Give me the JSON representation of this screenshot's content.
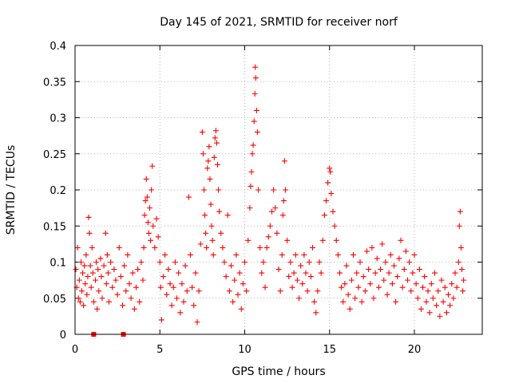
{
  "chart_data": {
    "type": "scatter",
    "title": "Day 145 of 2021, SRMTID for receiver norf",
    "xlabel": "GPS time / hours",
    "ylabel": "SRMTID / TECUs",
    "xlim": [
      0,
      24
    ],
    "ylim": [
      0,
      0.4
    ],
    "x_ticks": [
      {
        "value": 0,
        "label": "0"
      },
      {
        "value": 5,
        "label": "5"
      },
      {
        "value": 10,
        "label": "10"
      },
      {
        "value": 15,
        "label": "15"
      },
      {
        "value": 20,
        "label": "20"
      }
    ],
    "y_ticks": [
      {
        "value": 0,
        "label": "0"
      },
      {
        "value": 0.05,
        "label": "0.05"
      },
      {
        "value": 0.1,
        "label": "0.1"
      },
      {
        "value": 0.15,
        "label": "0.15"
      },
      {
        "value": 0.2,
        "label": "0.2"
      },
      {
        "value": 0.25,
        "label": "0.25"
      },
      {
        "value": 0.3,
        "label": "0.3"
      },
      {
        "value": 0.35,
        "label": "0.35"
      },
      {
        "value": 0.4,
        "label": "0.4"
      }
    ],
    "grid": true,
    "color": "#ff0000",
    "series": [
      {
        "name": "SRMTID",
        "marker": "plus",
        "points": [
          [
            0.05,
            0.09
          ],
          [
            0.1,
            0.065
          ],
          [
            0.15,
            0.12
          ],
          [
            0.2,
            0.05
          ],
          [
            0.25,
            0.075
          ],
          [
            0.3,
            0.045
          ],
          [
            0.35,
            0.1
          ],
          [
            0.4,
            0.06
          ],
          [
            0.45,
            0.085
          ],
          [
            0.5,
            0.04
          ],
          [
            0.55,
            0.095
          ],
          [
            0.6,
            0.07
          ],
          [
            0.65,
            0.11
          ],
          [
            0.7,
            0.055
          ],
          [
            0.75,
            0.08
          ],
          [
            0.8,
            0.162
          ],
          [
            0.85,
            0.14
          ],
          [
            0.9,
            0.095
          ],
          [
            0.95,
            0.065
          ],
          [
            1.0,
            0.12
          ],
          [
            1.05,
            0.085
          ],
          [
            1.1,
            0.045
          ],
          [
            1.2,
            0.075
          ],
          [
            1.25,
            0.1
          ],
          [
            1.3,
            0.035
          ],
          [
            1.35,
            0.09
          ],
          [
            1.4,
            0.06
          ],
          [
            1.5,
            0.105
          ],
          [
            1.55,
            0.08
          ],
          [
            1.6,
            0.05
          ],
          [
            1.7,
            0.095
          ],
          [
            1.8,
            0.14
          ],
          [
            1.85,
            0.07
          ],
          [
            1.9,
            0.11
          ],
          [
            1.95,
            0.085
          ],
          [
            2.0,
            0.045
          ],
          [
            2.1,
            0.1
          ],
          [
            2.2,
            0.065
          ],
          [
            2.3,
            0.09
          ],
          [
            2.4,
            0.075
          ],
          [
            2.5,
            0.055
          ],
          [
            2.6,
            0.12
          ],
          [
            2.7,
            0.08
          ],
          [
            2.8,
            0.04
          ],
          [
            2.9,
            0.095
          ],
          [
            3.0,
            0.06
          ],
          [
            3.1,
            0.11
          ],
          [
            3.2,
            0.07
          ],
          [
            3.3,
            0.05
          ],
          [
            3.4,
            0.085
          ],
          [
            3.5,
            0.035
          ],
          [
            3.6,
            0.065
          ],
          [
            3.7,
            0.09
          ],
          [
            3.8,
            0.045
          ],
          [
            3.9,
            0.1
          ],
          [
            4.0,
            0.075
          ],
          [
            4.05,
            0.12
          ],
          [
            4.1,
            0.165
          ],
          [
            4.15,
            0.185
          ],
          [
            4.2,
            0.215
          ],
          [
            4.25,
            0.19
          ],
          [
            4.3,
            0.155
          ],
          [
            4.35,
            0.14
          ],
          [
            4.4,
            0.175
          ],
          [
            4.45,
            0.13
          ],
          [
            4.5,
            0.2
          ],
          [
            4.55,
            0.233
          ],
          [
            4.6,
            0.15
          ],
          [
            4.7,
            0.12
          ],
          [
            4.8,
            0.16
          ],
          [
            4.9,
            0.135
          ],
          [
            5.0,
            0.1
          ],
          [
            5.05,
            0.065
          ],
          [
            5.1,
            0.02
          ],
          [
            5.2,
            0.08
          ],
          [
            5.3,
            0.11
          ],
          [
            5.4,
            0.055
          ],
          [
            5.5,
            0.09
          ],
          [
            5.6,
            0.07
          ],
          [
            5.7,
            0.04
          ],
          [
            5.8,
            0.065
          ],
          [
            5.9,
            0.1
          ],
          [
            6.0,
            0.05
          ],
          [
            6.1,
            0.085
          ],
          [
            6.2,
            0.03
          ],
          [
            6.3,
            0.07
          ],
          [
            6.4,
            0.045
          ],
          [
            6.5,
            0.095
          ],
          [
            6.6,
            0.06
          ],
          [
            6.7,
            0.19
          ],
          [
            6.8,
            0.11
          ],
          [
            6.9,
            0.065
          ],
          [
            7.0,
            0.04
          ],
          [
            7.1,
            0.085
          ],
          [
            7.2,
            0.017
          ],
          [
            7.3,
            0.06
          ],
          [
            7.4,
            0.125
          ],
          [
            7.5,
            0.28
          ],
          [
            7.55,
            0.25
          ],
          [
            7.6,
            0.2
          ],
          [
            7.65,
            0.165
          ],
          [
            7.7,
            0.14
          ],
          [
            7.75,
            0.12
          ],
          [
            7.8,
            0.23
          ],
          [
            7.85,
            0.24
          ],
          [
            7.9,
            0.26
          ],
          [
            7.95,
            0.215
          ],
          [
            8.0,
            0.18
          ],
          [
            8.05,
            0.15
          ],
          [
            8.1,
            0.13
          ],
          [
            8.15,
            0.11
          ],
          [
            8.2,
            0.245
          ],
          [
            8.25,
            0.272
          ],
          [
            8.3,
            0.282
          ],
          [
            8.35,
            0.265
          ],
          [
            8.4,
            0.235
          ],
          [
            8.45,
            0.2
          ],
          [
            8.5,
            0.17
          ],
          [
            8.6,
            0.14
          ],
          [
            8.7,
            0.12
          ],
          [
            8.8,
            0.1
          ],
          [
            8.9,
            0.08
          ],
          [
            9.0,
            0.165
          ],
          [
            9.1,
            0.06
          ],
          [
            9.2,
            0.095
          ],
          [
            9.3,
            0.045
          ],
          [
            9.4,
            0.075
          ],
          [
            9.5,
            0.11
          ],
          [
            9.6,
            0.055
          ],
          [
            9.7,
            0.085
          ],
          [
            9.8,
            0.035
          ],
          [
            9.9,
            0.07
          ],
          [
            10.0,
            0.1
          ],
          [
            10.1,
            0.06
          ],
          [
            10.2,
            0.13
          ],
          [
            10.3,
            0.175
          ],
          [
            10.35,
            0.205
          ],
          [
            10.4,
            0.225
          ],
          [
            10.45,
            0.25
          ],
          [
            10.5,
            0.262
          ],
          [
            10.55,
            0.295
          ],
          [
            10.6,
            0.333
          ],
          [
            10.62,
            0.37
          ],
          [
            10.65,
            0.355
          ],
          [
            10.7,
            0.31
          ],
          [
            10.75,
            0.28
          ],
          [
            10.8,
            0.2
          ],
          [
            10.9,
            0.12
          ],
          [
            11.0,
            0.085
          ],
          [
            11.1,
            0.1
          ],
          [
            11.2,
            0.065
          ],
          [
            11.3,
            0.12
          ],
          [
            11.4,
            0.135
          ],
          [
            11.5,
            0.15
          ],
          [
            11.6,
            0.17
          ],
          [
            11.7,
            0.2
          ],
          [
            11.8,
            0.175
          ],
          [
            11.9,
            0.14
          ],
          [
            12.0,
            0.09
          ],
          [
            12.1,
            0.06
          ],
          [
            12.2,
            0.11
          ],
          [
            12.25,
            0.165
          ],
          [
            12.3,
            0.185
          ],
          [
            12.35,
            0.24
          ],
          [
            12.4,
            0.2
          ],
          [
            12.5,
            0.13
          ],
          [
            12.6,
            0.08
          ],
          [
            12.7,
            0.1
          ],
          [
            12.8,
            0.065
          ],
          [
            12.9,
            0.085
          ],
          [
            13.0,
            0.11
          ],
          [
            13.1,
            0.075
          ],
          [
            13.2,
            0.05
          ],
          [
            13.3,
            0.095
          ],
          [
            13.4,
            0.07
          ],
          [
            13.5,
            0.11
          ],
          [
            13.6,
            0.085
          ],
          [
            13.7,
            0.06
          ],
          [
            13.8,
            0.1
          ],
          [
            13.9,
            0.08
          ],
          [
            14.0,
            0.12
          ],
          [
            14.1,
            0.045
          ],
          [
            14.2,
            0.03
          ],
          [
            14.3,
            0.06
          ],
          [
            14.4,
            0.1
          ],
          [
            14.5,
            0.085
          ],
          [
            14.6,
            0.13
          ],
          [
            14.7,
            0.165
          ],
          [
            14.8,
            0.185
          ],
          [
            14.9,
            0.21
          ],
          [
            15.0,
            0.23
          ],
          [
            15.05,
            0.225
          ],
          [
            15.1,
            0.195
          ],
          [
            15.2,
            0.17
          ],
          [
            15.3,
            0.15
          ],
          [
            15.4,
            0.13
          ],
          [
            15.5,
            0.11
          ],
          [
            15.6,
            0.085
          ],
          [
            15.7,
            0.065
          ],
          [
            15.8,
            0.045
          ],
          [
            15.9,
            0.07
          ],
          [
            16.0,
            0.095
          ],
          [
            16.1,
            0.055
          ],
          [
            16.2,
            0.035
          ],
          [
            16.3,
            0.075
          ],
          [
            16.4,
            0.11
          ],
          [
            16.5,
            0.05
          ],
          [
            16.6,
            0.085
          ],
          [
            16.7,
            0.065
          ],
          [
            16.8,
            0.1
          ],
          [
            16.9,
            0.045
          ],
          [
            17.0,
            0.08
          ],
          [
            17.1,
            0.06
          ],
          [
            17.2,
            0.115
          ],
          [
            17.3,
            0.09
          ],
          [
            17.4,
            0.07
          ],
          [
            17.5,
            0.12
          ],
          [
            17.6,
            0.05
          ],
          [
            17.7,
            0.085
          ],
          [
            17.8,
            0.105
          ],
          [
            17.9,
            0.065
          ],
          [
            18.0,
            0.09
          ],
          [
            18.1,
            0.125
          ],
          [
            18.2,
            0.075
          ],
          [
            18.3,
            0.1
          ],
          [
            18.4,
            0.055
          ],
          [
            18.5,
            0.085
          ],
          [
            18.6,
            0.11
          ],
          [
            18.7,
            0.07
          ],
          [
            18.8,
            0.095
          ],
          [
            18.9,
            0.045
          ],
          [
            19.0,
            0.08
          ],
          [
            19.1,
            0.105
          ],
          [
            19.2,
            0.13
          ],
          [
            19.3,
            0.065
          ],
          [
            19.4,
            0.09
          ],
          [
            19.5,
            0.115
          ],
          [
            19.6,
            0.075
          ],
          [
            19.7,
            0.1
          ],
          [
            19.8,
            0.06
          ],
          [
            19.9,
            0.085
          ],
          [
            20.0,
            0.11
          ],
          [
            20.1,
            0.07
          ],
          [
            20.2,
            0.05
          ],
          [
            20.3,
            0.09
          ],
          [
            20.4,
            0.035
          ],
          [
            20.5,
            0.065
          ],
          [
            20.6,
            0.08
          ],
          [
            20.7,
            0.045
          ],
          [
            20.8,
            0.06
          ],
          [
            20.9,
            0.03
          ],
          [
            21.0,
            0.07
          ],
          [
            21.1,
            0.05
          ],
          [
            21.2,
            0.085
          ],
          [
            21.3,
            0.04
          ],
          [
            21.4,
            0.06
          ],
          [
            21.5,
            0.025
          ],
          [
            21.6,
            0.075
          ],
          [
            21.7,
            0.045
          ],
          [
            21.8,
            0.065
          ],
          [
            21.9,
            0.03
          ],
          [
            22.0,
            0.055
          ],
          [
            22.1,
            0.04
          ],
          [
            22.2,
            0.07
          ],
          [
            22.3,
            0.05
          ],
          [
            22.4,
            0.085
          ],
          [
            22.5,
            0.065
          ],
          [
            22.6,
            0.1
          ],
          [
            22.65,
            0.15
          ],
          [
            22.7,
            0.17
          ],
          [
            22.75,
            0.12
          ],
          [
            22.8,
            0.09
          ],
          [
            22.85,
            0.06
          ],
          [
            22.9,
            0.075
          ]
        ]
      }
    ],
    "zero_markers": [
      1.1,
      2.85
    ]
  }
}
